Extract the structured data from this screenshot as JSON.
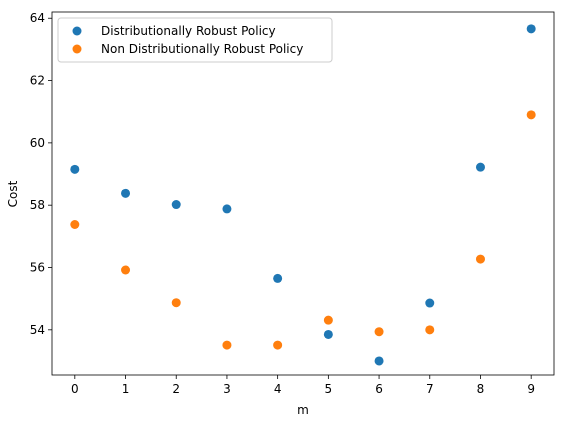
{
  "chart_data": {
    "type": "scatter",
    "title": "",
    "xlabel": "m",
    "ylabel": "Cost",
    "xlim": [
      -0.45,
      9.45
    ],
    "ylim": [
      52.55,
      64.2
    ],
    "xticks": [
      0,
      1,
      2,
      3,
      4,
      5,
      6,
      7,
      8,
      9
    ],
    "yticks": [
      54,
      56,
      58,
      60,
      62,
      64
    ],
    "grid": false,
    "legend_position": "top-left",
    "series": [
      {
        "name": "Distributionally Robust Policy",
        "color": "#1f77b4",
        "x": [
          0,
          1,
          2,
          3,
          4,
          5,
          6,
          7,
          8,
          9
        ],
        "y": [
          59.15,
          58.38,
          58.02,
          57.88,
          55.65,
          53.85,
          53.0,
          54.86,
          59.22,
          63.66
        ]
      },
      {
        "name": "Non Distributionally Robust Policy",
        "color": "#ff7f0e",
        "x": [
          0,
          1,
          2,
          3,
          4,
          5,
          6,
          7,
          8,
          9
        ],
        "y": [
          57.38,
          55.92,
          54.87,
          53.51,
          53.51,
          54.31,
          53.94,
          54.0,
          56.27,
          60.9
        ]
      }
    ]
  }
}
